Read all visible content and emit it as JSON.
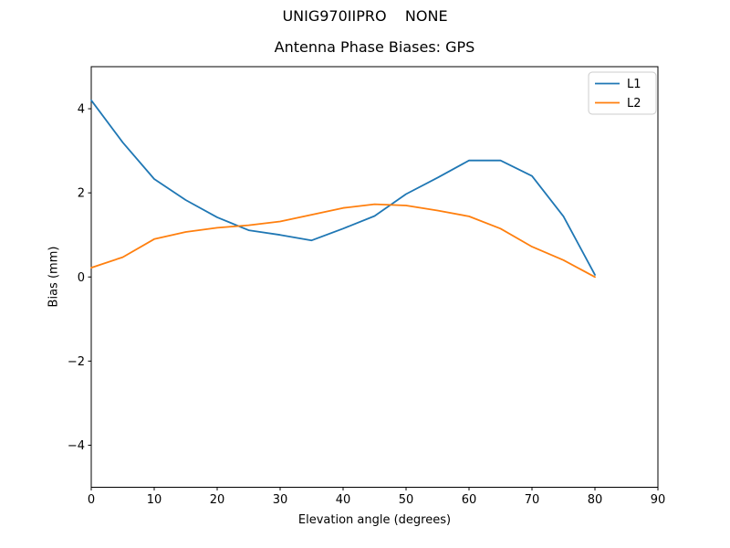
{
  "chart_data": {
    "type": "line",
    "suptitle": "UNIG970IIPRO    NONE",
    "title": "Antenna Phase Biases: GPS",
    "xlabel": "Elevation angle (degrees)",
    "ylabel": "Bias (mm)",
    "xlim": [
      0,
      90
    ],
    "ylim": [
      -5,
      5
    ],
    "x_ticks": [
      0,
      10,
      20,
      30,
      40,
      50,
      60,
      70,
      80,
      90
    ],
    "x_tick_labels": [
      "0",
      "10",
      "20",
      "30",
      "40",
      "50",
      "60",
      "70",
      "80",
      "90"
    ],
    "y_ticks": [
      -4,
      -2,
      0,
      2,
      4
    ],
    "y_tick_labels": [
      "−4",
      "−2",
      "0",
      "2",
      "4"
    ],
    "grid": false,
    "legend_position": "upper right",
    "x": [
      0,
      5,
      10,
      15,
      20,
      25,
      30,
      35,
      40,
      45,
      50,
      55,
      60,
      65,
      70,
      75,
      80
    ],
    "series": [
      {
        "name": "L1",
        "color": "#1f77b4",
        "values": [
          4.2,
          3.2,
          2.33,
          1.83,
          1.42,
          1.11,
          1.0,
          0.87,
          1.15,
          1.45,
          1.97,
          2.36,
          2.77,
          2.77,
          2.4,
          1.44,
          0.05
        ]
      },
      {
        "name": "L2",
        "color": "#ff7f0e",
        "values": [
          0.22,
          0.47,
          0.9,
          1.07,
          1.17,
          1.23,
          1.32,
          1.48,
          1.64,
          1.73,
          1.7,
          1.58,
          1.44,
          1.15,
          0.72,
          0.4,
          0.0
        ]
      }
    ],
    "axis_color": "#000000",
    "background_color": "#ffffff",
    "legend_border_color": "#cccccc"
  }
}
